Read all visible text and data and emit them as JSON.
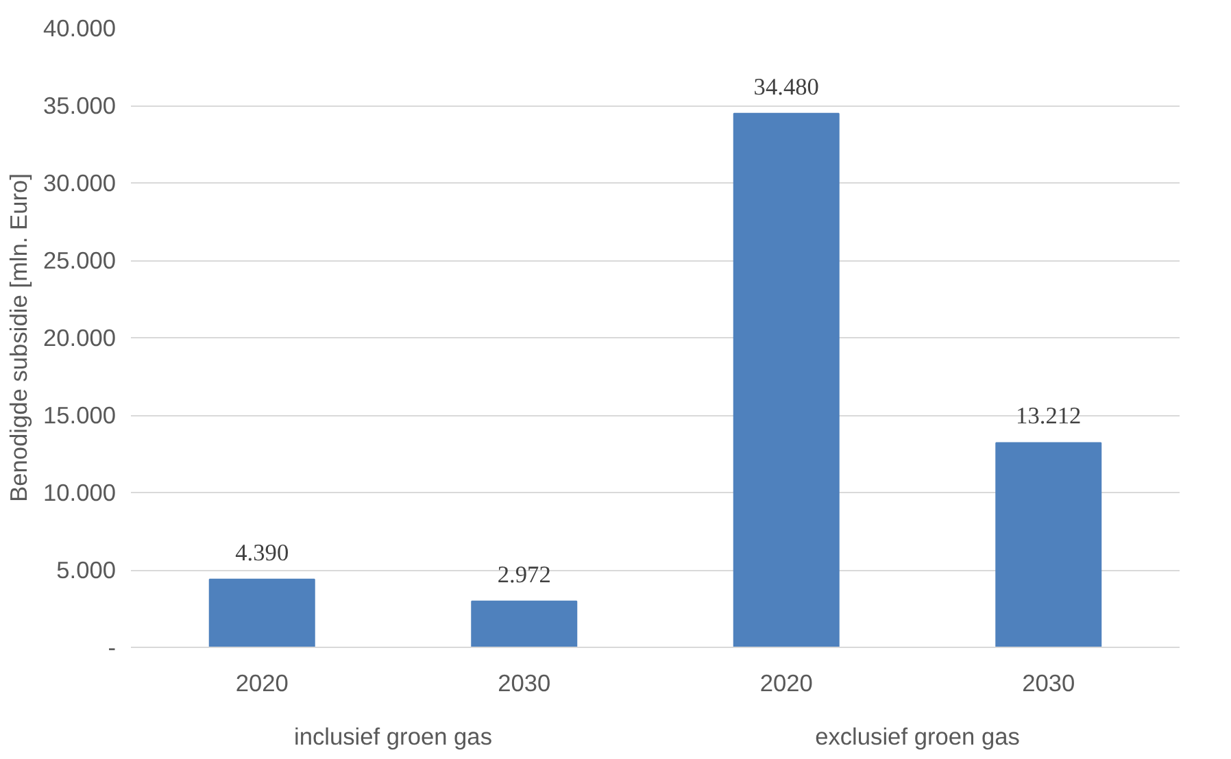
{
  "chart_data": {
    "type": "bar",
    "ylabel": "Benodigde subsidie [mln. Euro]",
    "categories": [
      "2020",
      "2030",
      "2020",
      "2030"
    ],
    "annotations": [
      "inclusief groen gas",
      "exclusief groen gas"
    ],
    "values": [
      4390,
      2972,
      34480,
      13212
    ],
    "value_labels": [
      "4.390",
      "2.972",
      "34.480",
      "13.212"
    ],
    "color": "#4f81bd",
    "ylim": [
      0,
      40000
    ],
    "yticks": [
      {
        "value": 0,
        "label": "-"
      },
      {
        "value": 5000,
        "label": "5.000"
      },
      {
        "value": 10000,
        "label": "10.000"
      },
      {
        "value": 15000,
        "label": "15.000"
      },
      {
        "value": 20000,
        "label": "20.000"
      },
      {
        "value": 25000,
        "label": "25.000"
      },
      {
        "value": 30000,
        "label": "30.000"
      },
      {
        "value": 35000,
        "label": "35.000"
      },
      {
        "value": 40000,
        "label": "40.000"
      }
    ],
    "grid": "y"
  }
}
